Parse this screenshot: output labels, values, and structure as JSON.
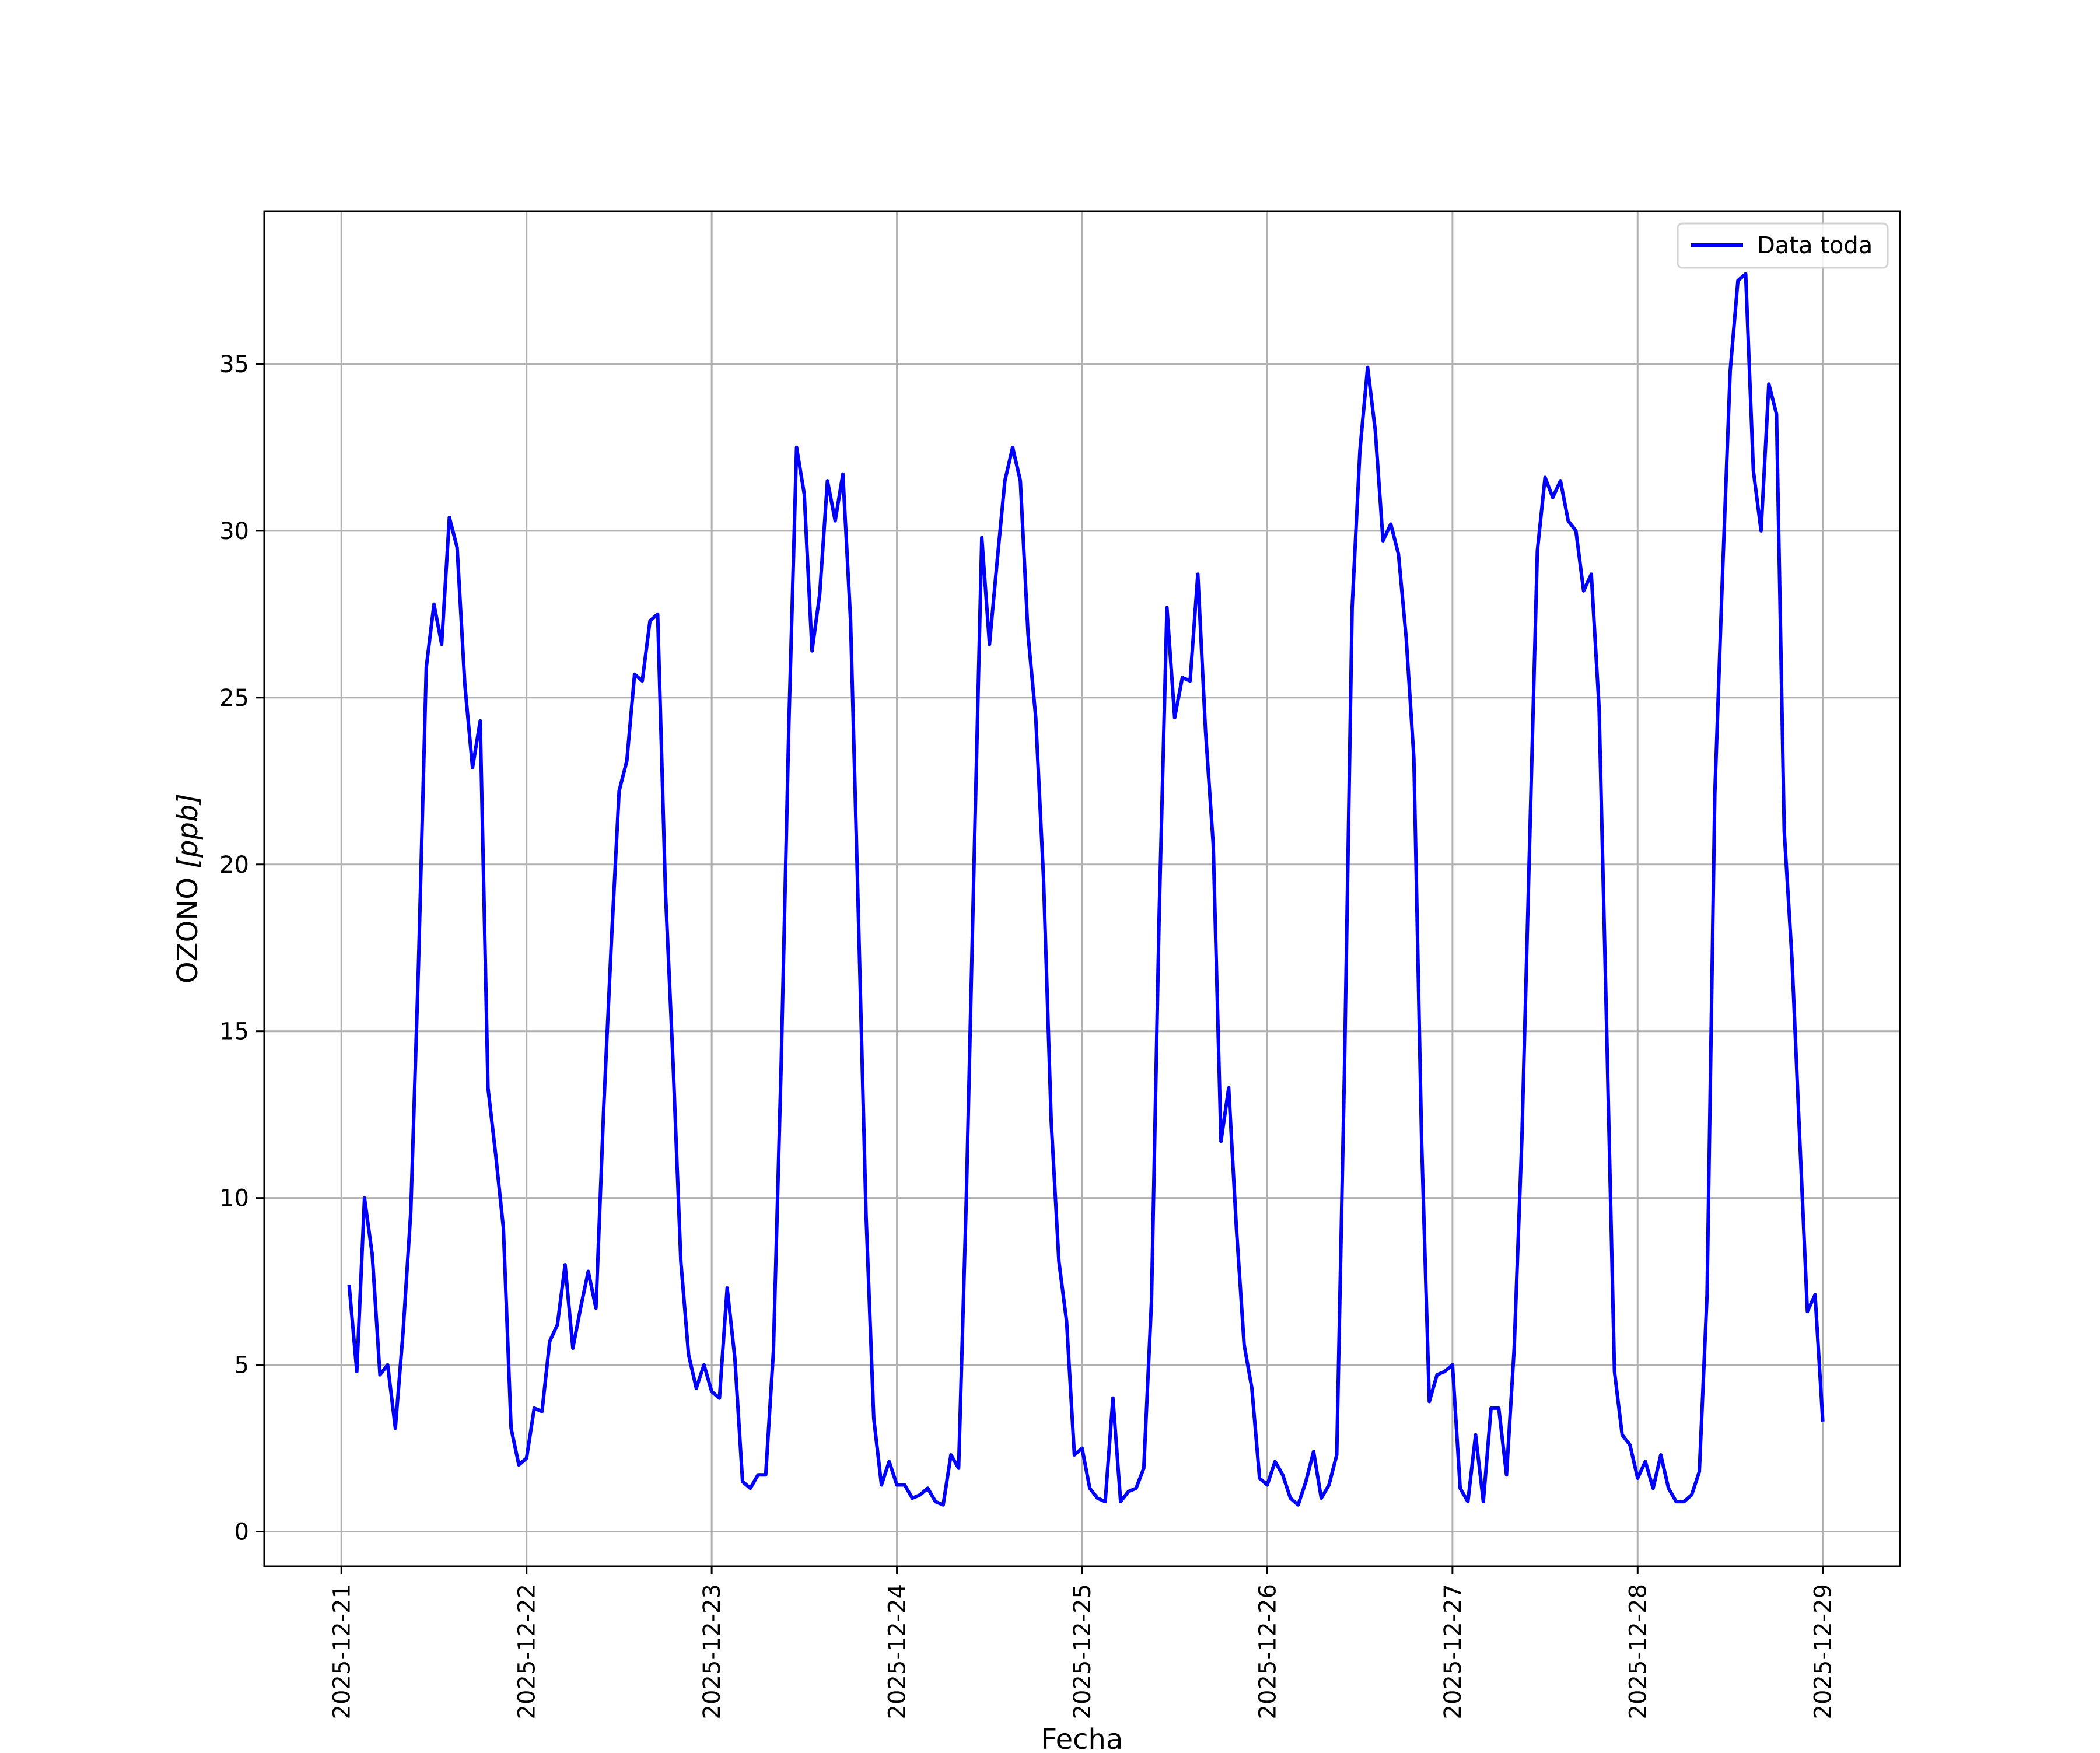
{
  "chart_data": {
    "type": "line",
    "title": "",
    "xlabel": "Fecha",
    "ylabel_main": "OZONO ",
    "ylabel_math": "[ppb]",
    "x_start": "2025-12-21 01:00",
    "x_step": "1 hour",
    "x_end": "2025-12-29 00:00",
    "x_ticks": [
      "2025-12-21",
      "2025-12-22",
      "2025-12-23",
      "2025-12-24",
      "2025-12-25",
      "2025-12-26",
      "2025-12-27",
      "2025-12-28",
      "2025-12-29"
    ],
    "xlim": [
      "2025-12-20 14:00",
      "2025-12-29 10:00"
    ],
    "y_ticks": [
      0,
      5,
      10,
      15,
      20,
      25,
      30,
      35
    ],
    "ylim": [
      -1.04,
      39.58
    ],
    "grid": true,
    "legend_position": "top-right",
    "color": "#0000ff",
    "series": [
      {
        "name": "Data toda",
        "values": [
          7.4,
          4.8,
          10.0,
          8.3,
          4.7,
          5.0,
          3.1,
          6.0,
          9.6,
          17.0,
          25.9,
          27.8,
          26.6,
          30.4,
          29.5,
          25.4,
          22.9,
          24.3,
          13.3,
          11.3,
          9.1,
          3.1,
          2.0,
          2.2,
          3.7,
          3.6,
          5.7,
          6.2,
          8.0,
          5.5,
          6.7,
          7.8,
          6.7,
          12.7,
          17.7,
          22.2,
          23.1,
          25.7,
          25.5,
          27.3,
          27.5,
          19.2,
          14.0,
          8.1,
          5.3,
          4.3,
          5.0,
          4.2,
          4.0,
          7.3,
          5.2,
          1.5,
          1.3,
          1.7,
          1.7,
          5.4,
          14.0,
          24.2,
          32.5,
          31.1,
          26.4,
          28.1,
          31.5,
          30.3,
          31.7,
          27.3,
          18.6,
          9.5,
          3.4,
          1.4,
          2.1,
          1.4,
          1.4,
          1.0,
          1.1,
          1.3,
          0.9,
          0.8,
          2.3,
          1.9,
          10.0,
          20.0,
          29.8,
          26.6,
          29.1,
          31.5,
          32.5,
          31.5,
          26.9,
          24.4,
          19.6,
          12.3,
          8.1,
          6.3,
          2.3,
          2.5,
          1.3,
          1.0,
          0.9,
          4.0,
          0.9,
          1.2,
          1.3,
          1.9,
          6.9,
          18.6,
          27.7,
          24.4,
          25.6,
          25.5,
          28.7,
          24.0,
          20.6,
          11.7,
          13.3,
          9.1,
          5.6,
          4.3,
          1.6,
          1.4,
          2.1,
          1.7,
          1.0,
          0.8,
          1.5,
          2.4,
          1.0,
          1.4,
          2.3,
          13.8,
          27.7,
          32.4,
          34.9,
          33.0,
          29.7,
          30.2,
          29.3,
          26.8,
          23.2,
          11.7,
          3.9,
          4.7,
          4.8,
          5.0,
          1.3,
          0.9,
          2.9,
          0.9,
          3.7,
          3.7,
          1.7,
          5.5,
          11.8,
          20.6,
          29.4,
          31.6,
          31.0,
          31.5,
          30.3,
          30.0,
          28.2,
          28.7,
          24.7,
          14.9,
          4.8,
          2.9,
          2.6,
          1.6,
          2.1,
          1.3,
          2.3,
          1.3,
          0.9,
          0.9,
          1.1,
          1.8,
          7.1,
          22.1,
          28.7,
          34.8,
          37.5,
          37.7,
          31.8,
          30.0,
          34.4,
          33.5,
          21.0,
          17.2,
          11.8,
          6.6,
          7.1,
          3.3
        ]
      }
    ]
  }
}
